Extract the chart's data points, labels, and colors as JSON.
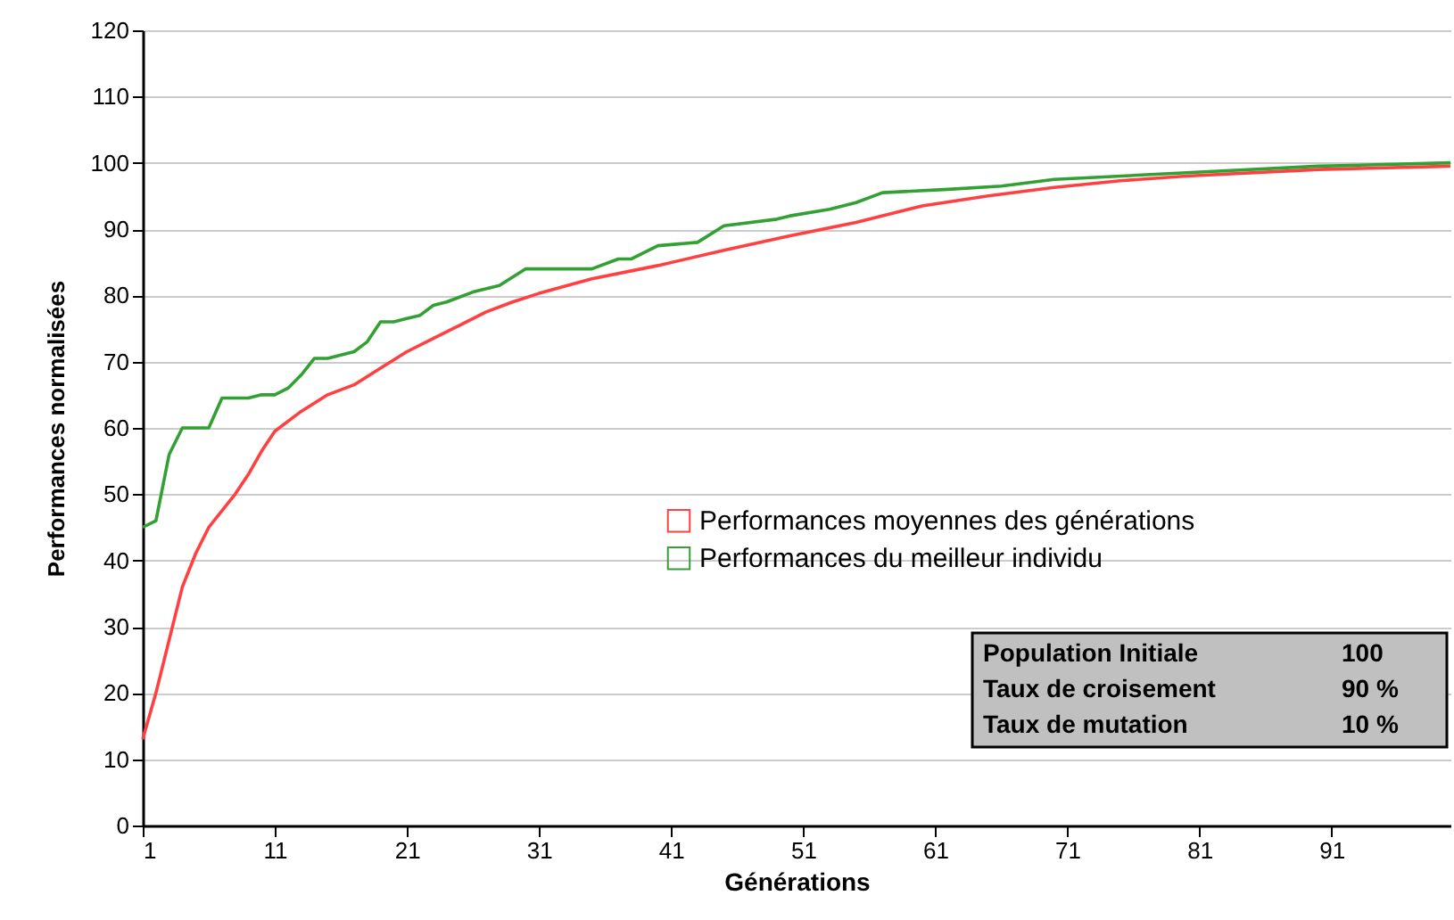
{
  "chart_data": {
    "type": "line",
    "xlabel": "Générations",
    "ylabel": "Performances normalisées",
    "xlim": [
      1,
      100
    ],
    "xticks": [
      1,
      11,
      21,
      31,
      41,
      51,
      61,
      71,
      81,
      91
    ],
    "ylim": [
      0,
      120
    ],
    "yticks": [
      0,
      10,
      20,
      30,
      40,
      50,
      60,
      70,
      80,
      90,
      100,
      110,
      120
    ],
    "grid": "y",
    "legend": "right",
    "marker": "none",
    "line_style": "solid",
    "annotations": [
      "Population Initiale",
      "100",
      "Taux de croisement",
      "90 %",
      "Taux de mutation",
      "10 %"
    ],
    "series": [
      {
        "name": "Performances moyennes des générations",
        "color": "#ff4040",
        "x": [
          1,
          2,
          3,
          4,
          5,
          6,
          7,
          8,
          9,
          10,
          11,
          13,
          15,
          17,
          19,
          21,
          23,
          25,
          27,
          29,
          31,
          35,
          40,
          45,
          50,
          55,
          60,
          65,
          70,
          75,
          80,
          90,
          100
        ],
        "values": [
          13,
          20,
          28,
          36,
          41,
          45,
          47.5,
          50,
          53,
          56.5,
          59.5,
          62.5,
          65,
          66.5,
          69,
          71.5,
          73.5,
          75.5,
          77.5,
          79,
          80.3,
          82.5,
          84.5,
          86.8,
          89,
          91,
          93.5,
          95,
          96.3,
          97.3,
          98,
          99,
          99.5
        ]
      },
      {
        "name": "Performances du meilleur individu",
        "color": "#33a033",
        "x": [
          1,
          2,
          3,
          4,
          6,
          7,
          9,
          10,
          11,
          12,
          13,
          14,
          15,
          16,
          17,
          18,
          19,
          20,
          21,
          22,
          23,
          24,
          26,
          28,
          30,
          35,
          37,
          38,
          40,
          43,
          45,
          49,
          50,
          53,
          55,
          57,
          62,
          66,
          70,
          80,
          90,
          100
        ],
        "values": [
          45,
          46,
          56,
          60,
          60,
          64.5,
          64.5,
          65,
          65,
          66,
          68,
          70.5,
          70.5,
          71,
          71.5,
          73,
          76,
          76,
          76.5,
          77,
          78.5,
          79,
          80.5,
          81.5,
          84,
          84,
          85.5,
          85.5,
          87.5,
          88,
          90.5,
          91.5,
          92,
          93,
          94,
          95.5,
          96,
          96.5,
          97.5,
          98.5,
          99.5,
          100
        ]
      }
    ]
  }
}
